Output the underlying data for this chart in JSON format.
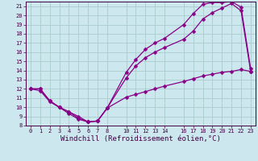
{
  "xlabel": "Windchill (Refroidissement éolien,°C)",
  "bg_color": "#cce8ee",
  "line_color": "#880088",
  "grid_color": "#aacccc",
  "xlim": [
    -0.5,
    23.5
  ],
  "ylim": [
    8,
    21.5
  ],
  "xticks": [
    0,
    1,
    2,
    3,
    4,
    5,
    6,
    7,
    8,
    10,
    11,
    12,
    13,
    14,
    16,
    17,
    18,
    19,
    20,
    21,
    22,
    23
  ],
  "yticks": [
    8,
    9,
    10,
    11,
    12,
    13,
    14,
    15,
    16,
    17,
    18,
    19,
    20,
    21
  ],
  "line1_x": [
    0,
    1,
    2,
    3,
    4,
    5,
    6,
    7,
    8,
    10,
    11,
    12,
    13,
    14,
    16,
    17,
    18,
    19,
    20,
    21,
    22,
    23
  ],
  "line1_y": [
    12.0,
    11.8,
    10.6,
    10.0,
    9.3,
    8.7,
    8.4,
    8.5,
    9.9,
    11.1,
    11.4,
    11.7,
    12.0,
    12.3,
    12.8,
    13.1,
    13.4,
    13.6,
    13.8,
    13.9,
    14.1,
    13.9
  ],
  "line2_x": [
    0,
    1,
    2,
    3,
    4,
    5,
    6,
    7,
    8,
    10,
    11,
    12,
    13,
    14,
    16,
    17,
    18,
    19,
    20,
    21,
    22,
    23
  ],
  "line2_y": [
    12.0,
    12.0,
    10.7,
    10.0,
    9.5,
    8.8,
    8.4,
    8.5,
    9.9,
    13.2,
    14.5,
    15.4,
    16.0,
    16.5,
    17.4,
    18.3,
    19.6,
    20.3,
    20.8,
    21.3,
    20.5,
    13.9
  ],
  "line3_x": [
    0,
    1,
    2,
    3,
    4,
    5,
    6,
    7,
    8,
    10,
    11,
    12,
    13,
    14,
    16,
    17,
    18,
    19,
    20,
    21,
    22,
    23
  ],
  "line3_y": [
    12.0,
    12.0,
    10.7,
    10.0,
    9.5,
    9.0,
    8.4,
    8.5,
    9.9,
    13.8,
    15.2,
    16.3,
    17.0,
    17.5,
    19.0,
    20.2,
    21.2,
    21.4,
    21.4,
    21.5,
    20.9,
    14.2
  ],
  "marker": "D",
  "markersize": 2.5,
  "linewidth": 0.9,
  "tick_fontsize": 5.0,
  "xlabel_fontsize": 6.5
}
